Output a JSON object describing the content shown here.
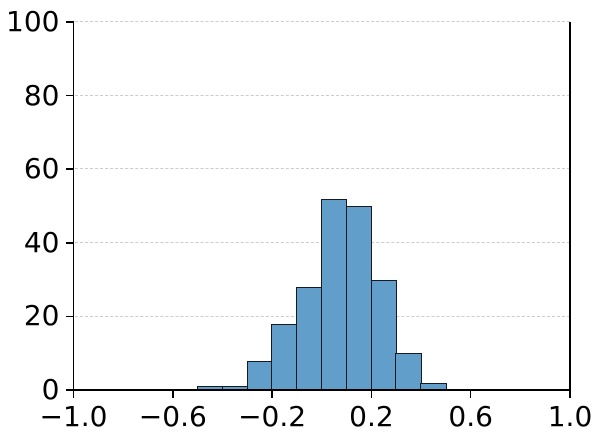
{
  "chart_data": {
    "type": "bar",
    "subtype": "histogram",
    "title": "",
    "xlabel": "",
    "ylabel": "",
    "bin_edges": [
      -0.5,
      -0.4,
      -0.3,
      -0.2,
      -0.1,
      0.0,
      0.1,
      0.2,
      0.3,
      0.4,
      0.5
    ],
    "counts": [
      1,
      1,
      8,
      18,
      28,
      52,
      50,
      30,
      10,
      2
    ],
    "xlim": [
      -1.0,
      1.0
    ],
    "ylim": [
      0,
      100
    ],
    "x_ticks": [
      -1.0,
      -0.6,
      -0.2,
      0.2,
      0.6,
      1.0
    ],
    "x_tick_labels": [
      "−1.0",
      "−0.6",
      "−0.2",
      "0.2",
      "0.6",
      "1.0"
    ],
    "y_ticks": [
      0,
      20,
      40,
      60,
      80,
      100
    ],
    "y_tick_labels": [
      "0",
      "20",
      "40",
      "60",
      "80",
      "100"
    ],
    "grid": "horizontal dashed gridlines at y ticks, behind bars",
    "legend": "none",
    "spines": [
      "left",
      "right",
      "bottom"
    ],
    "colors": {
      "bar_fill": "#619fca",
      "bar_edge": "#191922",
      "gridline": "#cccccc",
      "axis": "#000000",
      "text": "#000000",
      "background": "#ffffff"
    }
  }
}
